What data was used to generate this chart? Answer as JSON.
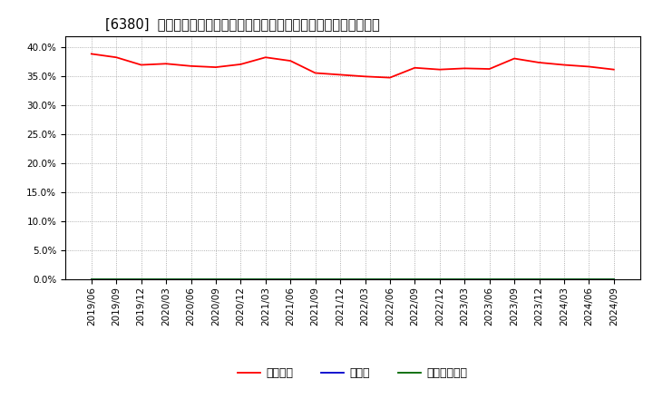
{
  "title": "[6380]  自己資本、のれん、繰延税金資産の総資産に対する比率の推移",
  "x_labels": [
    "2019/06",
    "2019/09",
    "2019/12",
    "2020/03",
    "2020/06",
    "2020/09",
    "2020/12",
    "2021/03",
    "2021/06",
    "2021/09",
    "2021/12",
    "2022/03",
    "2022/06",
    "2022/09",
    "2022/12",
    "2023/03",
    "2023/06",
    "2023/09",
    "2023/12",
    "2024/03",
    "2024/06",
    "2024/09"
  ],
  "equity_values": [
    0.389,
    0.383,
    0.37,
    0.372,
    0.368,
    0.366,
    0.371,
    0.383,
    0.377,
    0.356,
    0.353,
    0.35,
    0.348,
    0.365,
    0.362,
    0.364,
    0.363,
    0.381,
    0.374,
    0.37,
    0.367,
    0.362
  ],
  "goodwill_values": [
    0.0,
    0.0,
    0.0,
    0.0,
    0.0,
    0.0,
    0.0,
    0.0,
    0.0,
    0.0,
    0.0,
    0.0,
    0.0,
    0.0,
    0.0,
    0.0,
    0.0,
    0.0,
    0.0,
    0.0,
    0.0,
    0.0
  ],
  "deferred_values": [
    0.0,
    0.0,
    0.0,
    0.0,
    0.0,
    0.0,
    0.0,
    0.0,
    0.0,
    0.0,
    0.0,
    0.0,
    0.0,
    0.0,
    0.0,
    0.0,
    0.0,
    0.0,
    0.0,
    0.0,
    0.0,
    0.0
  ],
  "equity_color": "#ff0000",
  "goodwill_color": "#0000cc",
  "deferred_color": "#006600",
  "legend_equity": "自己資本",
  "legend_goodwill": "のれん",
  "legend_deferred": "繰延税金資産",
  "ylim_min": 0.0,
  "ylim_max": 0.42,
  "yticks": [
    0.0,
    0.05,
    0.1,
    0.15,
    0.2,
    0.25,
    0.3,
    0.35,
    0.4
  ],
  "bg_color": "#ffffff",
  "grid_color": "#999999",
  "title_fontsize": 10.5,
  "tick_fontsize": 7.5,
  "legend_fontsize": 9
}
